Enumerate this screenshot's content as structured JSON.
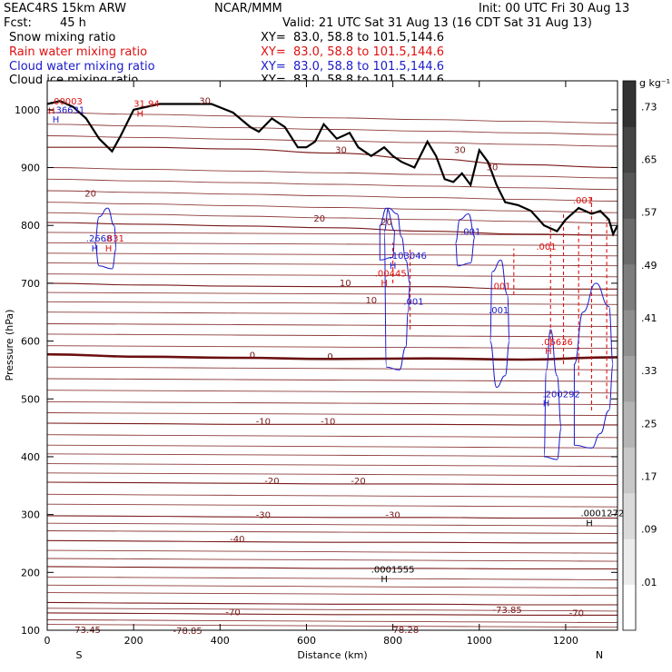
{
  "header": {
    "model": "SEAC4RS 15km ARW",
    "org": "NCAR/MMM",
    "init": "Init: 00 UTC Fri 30 Aug 13",
    "fcst_label": "Fcst:",
    "fcst_value": "45 h",
    "valid": "Valid: 21 UTC Sat 31 Aug 13 (16 CDT Sat 31 Aug 13)"
  },
  "fields": [
    {
      "label": "Snow mixing ratio",
      "xy": "XY=  83.0, 58.8 to 101.5,144.6",
      "color": "#000000"
    },
    {
      "label": "Rain water mixing ratio",
      "xy": "XY=  83.0, 58.8 to 101.5,144.6",
      "color": "#e01010"
    },
    {
      "label": "Cloud water mixing ratio",
      "xy": "XY=  83.0, 58.8 to 101.5,144.6",
      "color": "#1a1acc"
    },
    {
      "label": "Cloud ice mixing ratio",
      "xy": "XY=  83.0, 58.8 to 101.5,144.6",
      "color": "#000000"
    }
  ],
  "colors": {
    "temperature": "#7a1a1a",
    "freezing": "#6b0f0f",
    "rain": "#e01010",
    "cloud": "#1a1acc",
    "terrain": "#000000"
  },
  "chart_data": {
    "type": "contour",
    "xlabel": "Distance (km)",
    "ylabel": "Pressure (hPa)",
    "xlim": [
      0,
      1320
    ],
    "ylim": [
      1050,
      100
    ],
    "xticks": [
      0,
      200,
      400,
      600,
      800,
      1000,
      1200
    ],
    "yticks": [
      100,
      200,
      300,
      400,
      500,
      600,
      700,
      800,
      900,
      1000
    ],
    "end_labels": {
      "left": "S",
      "right": "N"
    },
    "colorbar": {
      "unit": "g kg⁻¹",
      "levels": [
        ".01",
        ".09",
        ".17",
        ".25",
        ".33",
        ".41",
        ".49",
        ".57",
        ".65",
        ".73"
      ]
    },
    "terrain": {
      "x": [
        0,
        30,
        60,
        90,
        120,
        150,
        170,
        200,
        260,
        330,
        380,
        430,
        470,
        490,
        520,
        550,
        580,
        600,
        620,
        640,
        670,
        700,
        720,
        750,
        780,
        800,
        820,
        850,
        880,
        900,
        920,
        940,
        960,
        980,
        1000,
        1020,
        1040,
        1060,
        1090,
        1120,
        1150,
        1180,
        1200,
        1230,
        1260,
        1280,
        1300,
        1310,
        1320
      ],
      "p": [
        1010,
        1015,
        1005,
        985,
        950,
        928,
        955,
        1000,
        1010,
        1010,
        1010,
        995,
        970,
        962,
        985,
        970,
        935,
        935,
        945,
        975,
        950,
        960,
        935,
        920,
        935,
        920,
        910,
        900,
        945,
        920,
        880,
        875,
        890,
        870,
        930,
        910,
        870,
        840,
        835,
        825,
        800,
        790,
        810,
        830,
        820,
        825,
        810,
        785,
        800
      ]
    },
    "temperature_contours": [
      {
        "label": "-70",
        "p": [
          130,
          129,
          128,
          127,
          127,
          126,
          126
        ]
      },
      {
        "label": "-60",
        "p": [
          148,
          147,
          146,
          145,
          145,
          144,
          144
        ]
      },
      {
        "label": "-50",
        "p": [
          210,
          209,
          208,
          207,
          207,
          206,
          206
        ]
      },
      {
        "label": "-40",
        "p": [
          255,
          254,
          253,
          252,
          252,
          251,
          251
        ]
      },
      {
        "label": "-30",
        "p": [
          298,
          297,
          296,
          295,
          295,
          294,
          294
        ]
      },
      {
        "label": "-20",
        "p": [
          356,
          355,
          354,
          353,
          353,
          352,
          352
        ]
      },
      {
        "label": "-10",
        "p": [
          458,
          457,
          456,
          456,
          456,
          455,
          455
        ]
      },
      {
        "label": "0",
        "p": [
          577,
          573,
          571,
          569,
          570,
          568,
          572
        ]
      },
      {
        "label": "10",
        "p": [
          700,
          697,
          695,
          694,
          694,
          690,
          690
        ]
      },
      {
        "label": "20",
        "p": [
          805,
          802,
          799,
          796,
          790,
          785,
          783
        ]
      },
      {
        "label": "30",
        "p": [
          935,
          935,
          932,
          925,
          915,
          905,
          900
        ]
      }
    ],
    "contour_x": [
      0,
      220,
      440,
      660,
      880,
      1100,
      1320
    ],
    "annotations": [
      {
        "text": "-73.45",
        "x": 90,
        "p": 95,
        "color": "#7a1a1a"
      },
      {
        "text": "-73.85",
        "x": 1065,
        "p": 130,
        "color": "#7a1a1a"
      },
      {
        "text": "-70",
        "x": 430,
        "p": 126,
        "color": "#7a1a1a"
      },
      {
        "text": "-70",
        "x": 1225,
        "p": 124,
        "color": "#7a1a1a"
      },
      {
        "text": "-40",
        "x": 440,
        "p": 252,
        "color": "#7a1a1a"
      },
      {
        "text": "-30",
        "x": 500,
        "p": 294,
        "color": "#7a1a1a"
      },
      {
        "text": "-30",
        "x": 800,
        "p": 294,
        "color": "#7a1a1a"
      },
      {
        "text": "-20",
        "x": 520,
        "p": 353,
        "color": "#7a1a1a"
      },
      {
        "text": "-20",
        "x": 720,
        "p": 353,
        "color": "#7a1a1a"
      },
      {
        "text": "-10",
        "x": 500,
        "p": 456,
        "color": "#7a1a1a"
      },
      {
        "text": "-10",
        "x": 650,
        "p": 456,
        "color": "#7a1a1a"
      },
      {
        "text": "0",
        "x": 475,
        "p": 570,
        "color": "#6b0f0f"
      },
      {
        "text": "0",
        "x": 655,
        "p": 568,
        "color": "#6b0f0f"
      },
      {
        "text": "10",
        "x": 690,
        "p": 695,
        "color": "#7a1a1a"
      },
      {
        "text": "10",
        "x": 750,
        "p": 665,
        "color": "#7a1a1a"
      },
      {
        "text": "20",
        "x": 100,
        "p": 850,
        "color": "#7a1a1a"
      },
      {
        "text": "20",
        "x": 630,
        "p": 807,
        "color": "#7a1a1a"
      },
      {
        "text": "20",
        "x": 785,
        "p": 800,
        "color": "#7a1a1a"
      },
      {
        "text": "30",
        "x": 680,
        "p": 925,
        "color": "#7a1a1a"
      },
      {
        "text": "30",
        "x": 955,
        "p": 925,
        "color": "#7a1a1a"
      },
      {
        "text": "30",
        "x": 1030,
        "p": 895,
        "color": "#7a1a1a"
      },
      {
        "text": "30",
        "x": 365,
        "p": 1010,
        "color": "#7a1a1a"
      },
      {
        "text": "H",
        "x": 780,
        "p": 183,
        "color": "#000000"
      },
      {
        "text": ".0001555",
        "x": 800,
        "p": 200,
        "color": "#000000"
      },
      {
        "text": "H",
        "x": 1255,
        "p": 280,
        "color": "#000000"
      },
      {
        "text": ".0001272",
        "x": 1285,
        "p": 297,
        "color": "#000000"
      },
      {
        "text": "H",
        "x": 1155,
        "p": 487,
        "color": "#1a1acc"
      },
      {
        "text": ".200292",
        "x": 1190,
        "p": 503,
        "color": "#1a1acc"
      },
      {
        "text": "H",
        "x": 1160,
        "p": 577,
        "color": "#e01010"
      },
      {
        "text": ".06636",
        "x": 1180,
        "p": 593,
        "color": "#e01010"
      },
      {
        "text": ".001",
        "x": 1045,
        "p": 648,
        "color": "#1a1acc"
      },
      {
        "text": ".001",
        "x": 1050,
        "p": 690,
        "color": "#e01010"
      },
      {
        "text": ".001",
        "x": 1155,
        "p": 758,
        "color": "#e01010"
      },
      {
        "text": ".001",
        "x": 1240,
        "p": 838,
        "color": "#e01010"
      },
      {
        "text": ".001",
        "x": 848,
        "p": 663,
        "color": "#1a1acc"
      },
      {
        "text": "H",
        "x": 780,
        "p": 695,
        "color": "#e01010"
      },
      {
        "text": ".00445",
        "x": 795,
        "p": 712,
        "color": "#e01010"
      },
      {
        "text": "H",
        "x": 800,
        "p": 725,
        "color": "#1a1acc"
      },
      {
        "text": ".103046",
        "x": 835,
        "p": 742,
        "color": "#1a1acc"
      },
      {
        "text": ".001",
        "x": 980,
        "p": 784,
        "color": "#1a1acc"
      },
      {
        "text": "H",
        "x": 110,
        "p": 755,
        "color": "#1a1acc"
      },
      {
        "text": ".2668",
        "x": 120,
        "p": 772,
        "color": "#1a1acc"
      },
      {
        "text": "H",
        "x": 142,
        "p": 755,
        "color": "#e01010"
      },
      {
        "text": ".831",
        "x": 155,
        "p": 772,
        "color": "#e01010"
      },
      {
        "text": "H",
        "x": 20,
        "p": 978,
        "color": "#1a1acc"
      },
      {
        "text": ".36631",
        "x": 50,
        "p": 994,
        "color": "#1a1acc"
      },
      {
        "text": "H",
        "x": 10,
        "p": 993,
        "color": "#e01010"
      },
      {
        "text": ".00003",
        "x": 45,
        "p": 1009,
        "color": "#e01010"
      },
      {
        "text": "H",
        "x": 215,
        "p": 988,
        "color": "#e01010"
      },
      {
        "text": "31.94",
        "x": 230,
        "p": 1005,
        "color": "#e01010"
      },
      {
        "text": "-78.85",
        "x": 325,
        "p": 94,
        "color": "#7a1a1a"
      },
      {
        "text": "78.28",
        "x": 830,
        "p": 95,
        "color": "#7a1a1a"
      }
    ],
    "cloud_water_contours": [
      {
        "x": [
          120,
          150,
          160,
          155,
          140,
          120,
          110,
          120
        ],
        "p": [
          730,
          725,
          760,
          800,
          830,
          815,
          770,
          730
        ]
      },
      {
        "x": [
          785,
          815,
          830,
          835,
          840,
          830,
          820,
          810,
          790,
          780,
          785
        ],
        "p": [
          555,
          550,
          590,
          650,
          700,
          740,
          780,
          820,
          830,
          790,
          555
        ]
      },
      {
        "x": [
          770,
          800,
          805,
          785,
          770,
          770
        ],
        "p": [
          740,
          745,
          790,
          830,
          800,
          740
        ]
      },
      {
        "x": [
          950,
          980,
          990,
          975,
          955,
          945,
          950
        ],
        "p": [
          730,
          735,
          780,
          820,
          810,
          770,
          730
        ]
      },
      {
        "x": [
          1040,
          1060,
          1070,
          1065,
          1050,
          1030,
          1025,
          1040
        ],
        "p": [
          520,
          540,
          600,
          680,
          740,
          720,
          600,
          520
        ]
      },
      {
        "x": [
          1150,
          1180,
          1190,
          1180,
          1165,
          1155,
          1150
        ],
        "p": [
          400,
          395,
          450,
          540,
          620,
          550,
          400
        ]
      },
      {
        "x": [
          1220,
          1260,
          1280,
          1300,
          1310,
          1300,
          1270,
          1240,
          1220,
          1220
        ],
        "p": [
          420,
          415,
          440,
          480,
          560,
          660,
          700,
          650,
          560,
          420
        ]
      }
    ],
    "rain_columns": [
      {
        "x": 1165,
        "p_top": 590,
        "p_bot": 800
      },
      {
        "x": 1195,
        "p_top": 560,
        "p_bot": 820
      },
      {
        "x": 1230,
        "p_top": 540,
        "p_bot": 800
      },
      {
        "x": 1260,
        "p_top": 480,
        "p_bot": 850
      },
      {
        "x": 1295,
        "p_top": 500,
        "p_bot": 810
      },
      {
        "x": 840,
        "p_top": 620,
        "p_bot": 760
      },
      {
        "x": 800,
        "p_top": 700,
        "p_bot": 770
      },
      {
        "x": 1080,
        "p_top": 680,
        "p_bot": 760
      }
    ],
    "snow_plume": {
      "x": 1265,
      "p_top": 270,
      "p_bot": 440
    }
  }
}
